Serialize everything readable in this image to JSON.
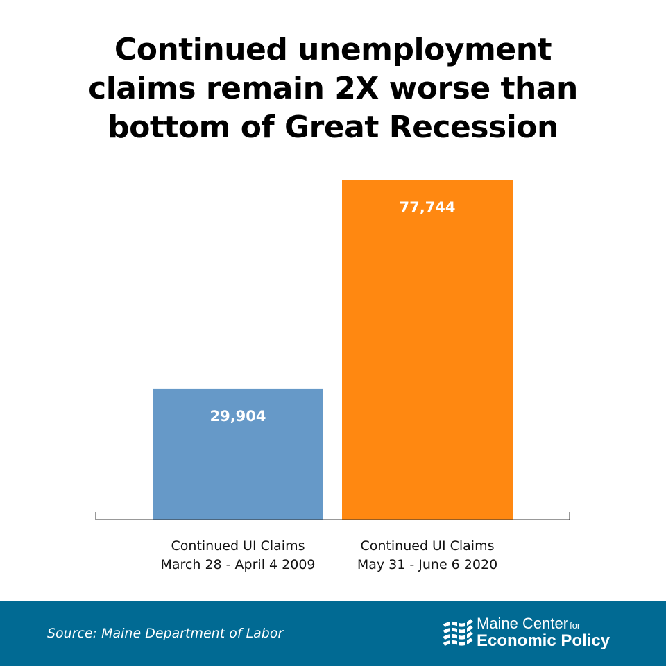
{
  "title_lines": [
    "Continued unemployment",
    "claims remain 2X worse than",
    "bottom of Great Recession"
  ],
  "chart_data": {
    "type": "bar",
    "categories": [
      [
        "Continued UI Claims",
        "March 28 - April 4 2009"
      ],
      [
        "Continued UI Claims",
        "May 31 - June 6 2020"
      ]
    ],
    "values": [
      29904,
      77744
    ],
    "value_labels": [
      "29,904",
      "77,744"
    ],
    "colors": [
      "#6699c8",
      "#ff8811"
    ],
    "ylim": [
      0,
      77744
    ],
    "grid": false,
    "legend": "none"
  },
  "footer": {
    "source": "Source: Maine Department of Labor",
    "logo_line1": "Maine Center",
    "logo_line1_small": "for",
    "logo_line2": "Economic Policy",
    "background_color": "#016a93"
  }
}
